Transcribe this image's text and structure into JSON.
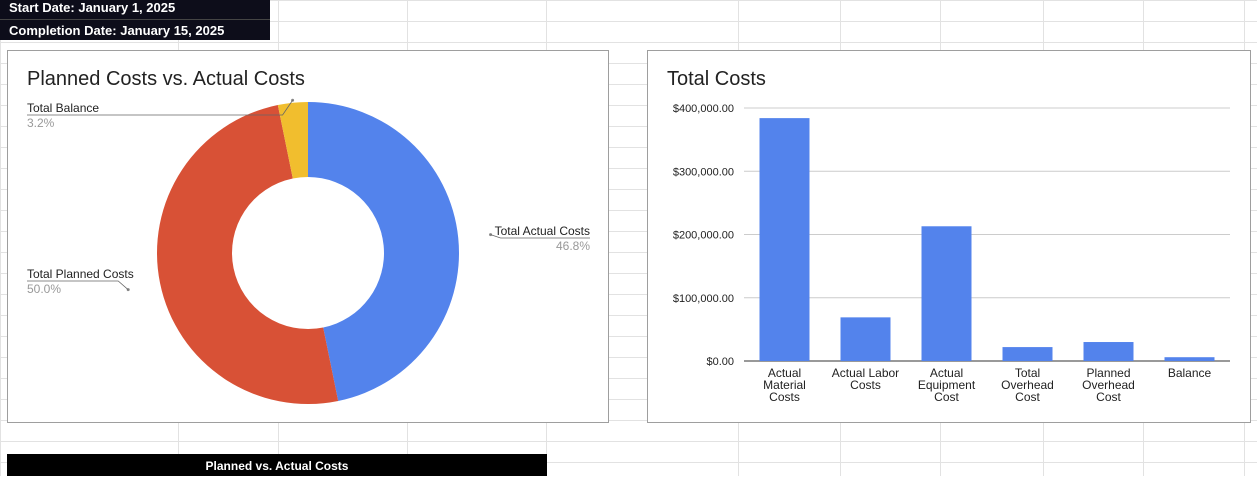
{
  "header": {
    "start_date": "Start Date: January 1, 2025",
    "completion_date": "Completion Date: January 15, 2025"
  },
  "footer": {
    "section_label": "Planned vs. Actual Costs"
  },
  "colors": {
    "blue": "#5383ec",
    "red": "#d85136",
    "yellow": "#f1be2e",
    "gridline": "#cccccc",
    "label_gray": "#999999"
  },
  "chart_data": [
    {
      "type": "pie",
      "donut": true,
      "title": "Planned Costs vs. Actual Costs",
      "slices": [
        {
          "label": "Total Actual Costs",
          "percent_label": "46.8%",
          "value": 46.8,
          "color": "#5383ec"
        },
        {
          "label": "Total Planned Costs",
          "percent_label": "50.0%",
          "value": 50.0,
          "color": "#d85136"
        },
        {
          "label": "Total Balance",
          "percent_label": "3.2%",
          "value": 3.2,
          "color": "#f1be2e"
        }
      ]
    },
    {
      "type": "bar",
      "title": "Total Costs",
      "categories": [
        [
          "Actual",
          "Material",
          "Costs"
        ],
        [
          "Actual Labor",
          "Costs"
        ],
        [
          "Actual",
          "Equipment",
          "Cost"
        ],
        [
          "Total",
          "Overhead",
          "Cost"
        ],
        [
          "Planned",
          "Overhead",
          "Cost"
        ],
        [
          "Balance"
        ]
      ],
      "values": [
        384000,
        69000,
        213000,
        22000,
        30000,
        6000
      ],
      "ylim": [
        0,
        400000
      ],
      "y_ticks": [
        0,
        100000,
        200000,
        300000,
        400000
      ],
      "y_tick_labels": [
        "$0.00",
        "$100,000.00",
        "$200,000.00",
        "$300,000.00",
        "$400,000.00"
      ],
      "color": "#5383ec",
      "grid": true
    }
  ]
}
